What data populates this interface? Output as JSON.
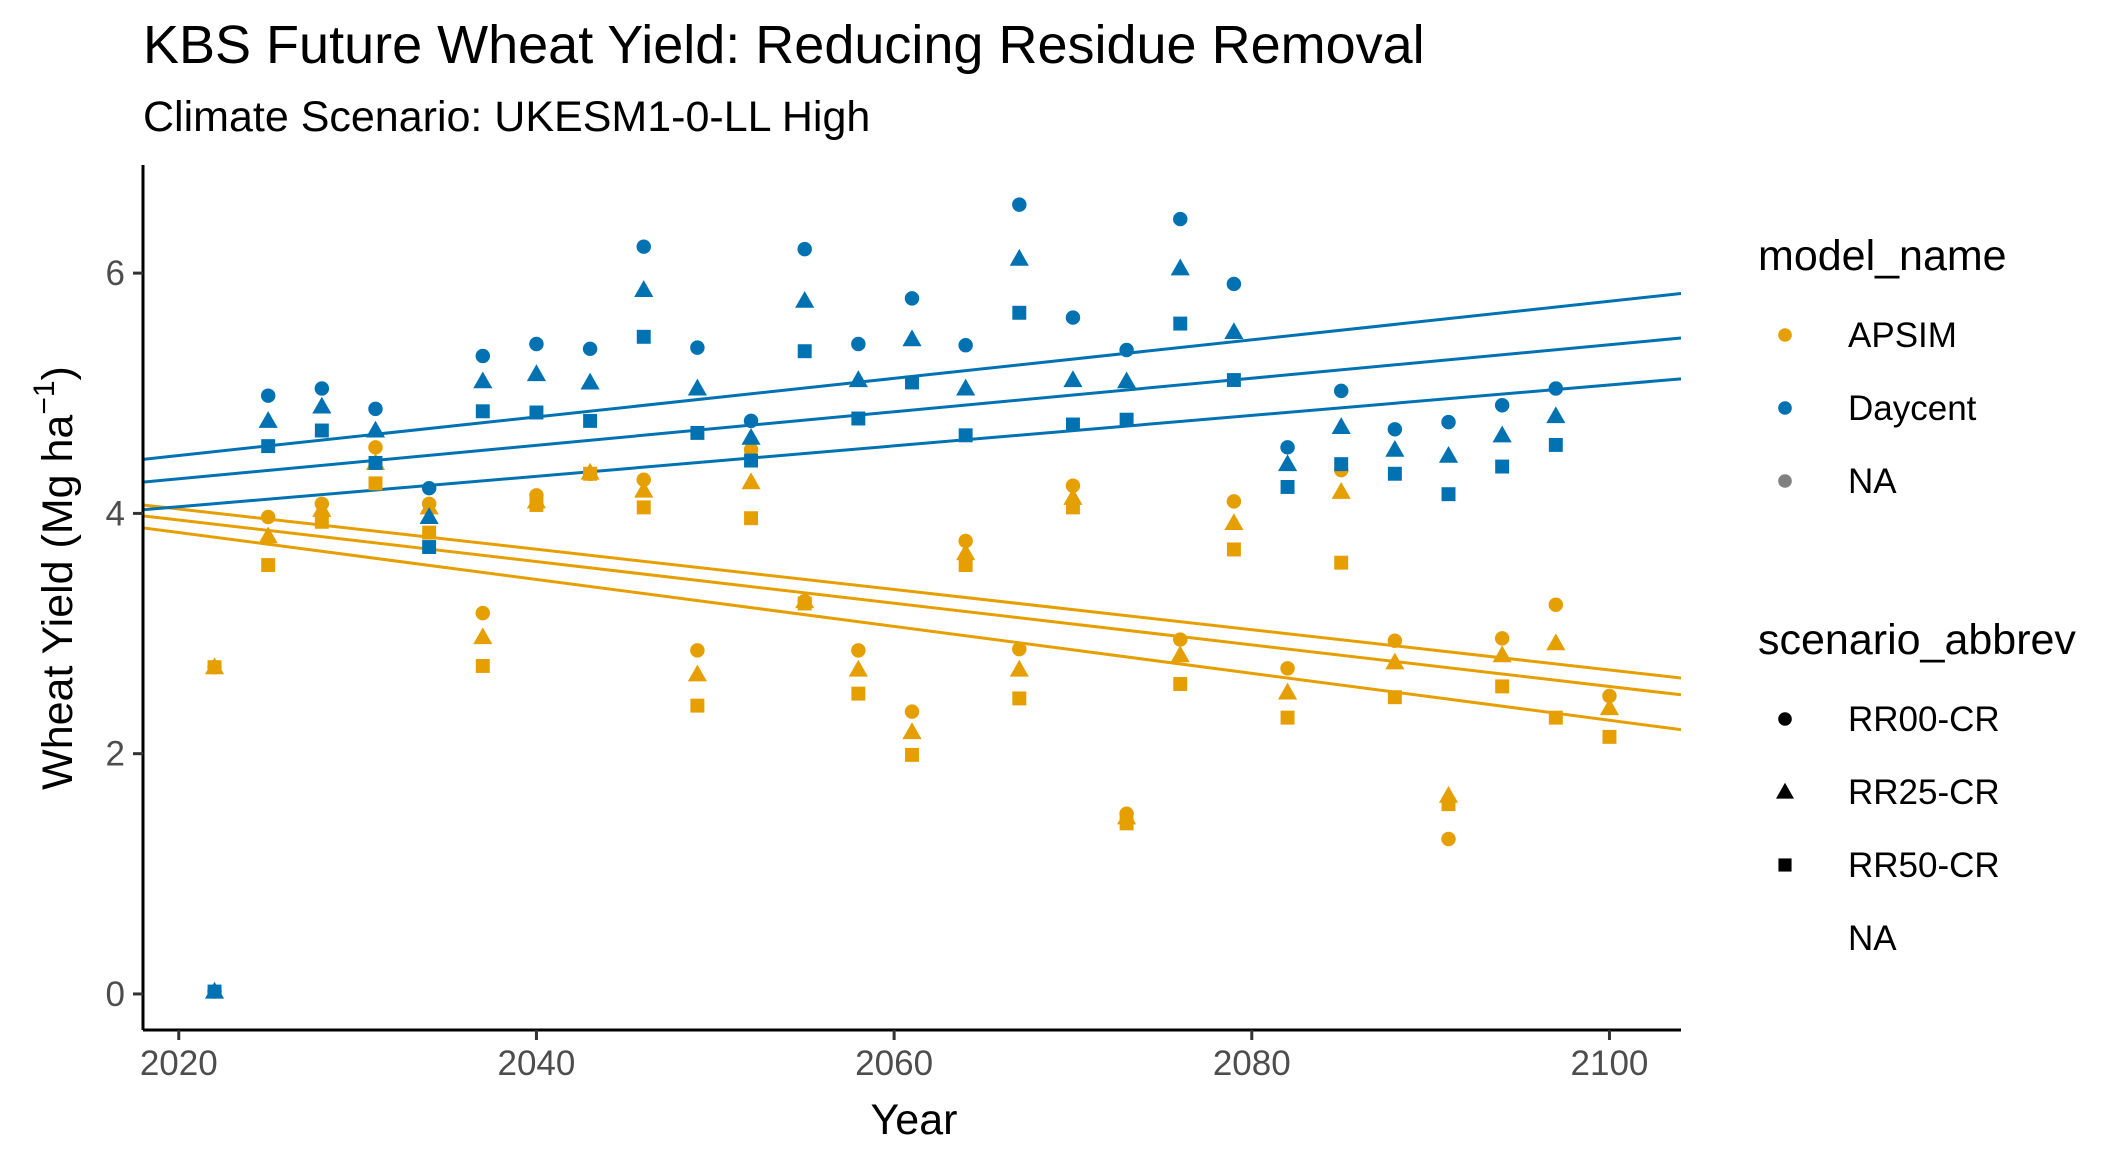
{
  "chart_data": {
    "type": "scatter",
    "title": "KBS Future Wheat Yield: Reducing Residue Removal",
    "subtitle": "Climate Scenario: UKESM1-0-LL High",
    "xlabel": "Year",
    "ylabel": "Wheat Yield (Mg ha",
    "ylabel_superscript": "−1",
    "ylabel_suffix": ")",
    "xlim": [
      2018,
      2104
    ],
    "ylim": [
      -0.3,
      6.9
    ],
    "x_ticks": [
      2020,
      2040,
      2060,
      2080,
      2100
    ],
    "y_ticks": [
      0,
      2,
      4,
      6
    ],
    "grid": false,
    "legend_position": "right",
    "colors": {
      "APSIM": "#E69F00",
      "Daycent": "#0072B2",
      "NA": "#808080"
    },
    "legends": [
      {
        "title": "model_name",
        "entries": [
          {
            "label": "APSIM",
            "color": "#E69F00",
            "shape": "circle"
          },
          {
            "label": "Daycent",
            "color": "#0072B2",
            "shape": "circle"
          },
          {
            "label": "NA",
            "color": "#808080",
            "shape": "circle"
          }
        ]
      },
      {
        "title": "scenario_abbrev",
        "entries": [
          {
            "label": "RR00-CR",
            "color": "#000000",
            "shape": "circle"
          },
          {
            "label": "RR25-CR",
            "color": "#000000",
            "shape": "triangle"
          },
          {
            "label": "RR50-CR",
            "color": "#000000",
            "shape": "square"
          },
          {
            "label": "NA",
            "color": "#000000",
            "shape": "none"
          }
        ]
      }
    ],
    "series": [
      {
        "model": "APSIM",
        "scenario": "RR00-CR",
        "shape": "circle",
        "x": [
          2022,
          2025,
          2028,
          2031,
          2034,
          2037,
          2040,
          2043,
          2046,
          2049,
          2052,
          2055,
          2058,
          2061,
          2064,
          2067,
          2070,
          2073,
          2076,
          2079,
          2082,
          2085,
          2088,
          2091,
          2094,
          2097,
          2100
        ],
        "y": [
          2.72,
          3.97,
          4.08,
          4.55,
          4.08,
          3.17,
          4.15,
          4.33,
          4.28,
          2.86,
          4.53,
          3.27,
          2.86,
          2.35,
          3.77,
          2.87,
          4.23,
          1.5,
          2.95,
          4.1,
          2.71,
          4.36,
          2.94,
          1.29,
          2.96,
          3.24,
          2.48
        ]
      },
      {
        "model": "APSIM",
        "scenario": "RR25-CR",
        "shape": "triangle",
        "x": [
          2022,
          2025,
          2028,
          2031,
          2034,
          2037,
          2040,
          2043,
          2046,
          2049,
          2052,
          2055,
          2058,
          2061,
          2064,
          2067,
          2070,
          2073,
          2076,
          2079,
          2082,
          2085,
          2088,
          2091,
          2094,
          2097,
          2100
        ],
        "y": [
          2.72,
          3.81,
          4.03,
          4.42,
          4.05,
          2.97,
          4.1,
          4.34,
          4.19,
          2.66,
          4.26,
          3.27,
          2.7,
          2.18,
          3.67,
          2.7,
          4.13,
          1.47,
          2.82,
          3.92,
          2.51,
          4.18,
          2.76,
          1.65,
          2.82,
          2.92,
          2.38
        ]
      },
      {
        "model": "APSIM",
        "scenario": "RR50-CR",
        "shape": "square",
        "x": [
          2022,
          2025,
          2028,
          2031,
          2034,
          2037,
          2040,
          2043,
          2046,
          2049,
          2052,
          2055,
          2058,
          2061,
          2064,
          2067,
          2070,
          2073,
          2076,
          2079,
          2082,
          2085,
          2088,
          2091,
          2094,
          2097,
          2100
        ],
        "y": [
          2.72,
          3.57,
          3.93,
          4.25,
          3.84,
          2.73,
          4.07,
          4.33,
          4.05,
          2.4,
          3.96,
          3.25,
          2.5,
          1.99,
          3.57,
          2.46,
          4.05,
          1.42,
          2.58,
          3.7,
          2.3,
          3.59,
          2.47,
          1.58,
          2.56,
          2.3,
          2.14
        ]
      },
      {
        "model": "Daycent",
        "scenario": "RR00-CR",
        "shape": "circle",
        "x": [
          2022,
          2025,
          2028,
          2031,
          2034,
          2037,
          2040,
          2043,
          2046,
          2049,
          2052,
          2055,
          2058,
          2061,
          2064,
          2067,
          2070,
          2073,
          2076,
          2079,
          2082,
          2085,
          2088,
          2091,
          2094,
          2097
        ],
        "y": [
          0.02,
          4.98,
          5.04,
          4.87,
          4.21,
          5.31,
          5.41,
          5.37,
          6.22,
          5.38,
          4.77,
          6.2,
          5.41,
          5.79,
          5.4,
          6.57,
          5.63,
          5.36,
          6.45,
          5.91,
          4.55,
          5.02,
          4.7,
          4.76,
          4.9,
          5.04
        ]
      },
      {
        "model": "Daycent",
        "scenario": "RR25-CR",
        "shape": "triangle",
        "x": [
          2022,
          2025,
          2028,
          2031,
          2034,
          2037,
          2040,
          2043,
          2046,
          2049,
          2052,
          2055,
          2058,
          2061,
          2064,
          2067,
          2070,
          2073,
          2076,
          2079,
          2082,
          2085,
          2088,
          2091,
          2094,
          2097
        ],
        "y": [
          0.02,
          4.77,
          4.89,
          4.69,
          3.97,
          5.1,
          5.16,
          5.09,
          5.86,
          5.04,
          4.63,
          5.77,
          5.11,
          5.45,
          5.04,
          6.12,
          5.11,
          5.1,
          6.04,
          5.51,
          4.41,
          4.72,
          4.53,
          4.48,
          4.65,
          4.81
        ]
      },
      {
        "model": "Daycent",
        "scenario": "RR50-CR",
        "shape": "square",
        "x": [
          2022,
          2025,
          2028,
          2031,
          2034,
          2037,
          2040,
          2043,
          2046,
          2049,
          2052,
          2055,
          2058,
          2061,
          2064,
          2067,
          2070,
          2073,
          2076,
          2079,
          2082,
          2085,
          2088,
          2091,
          2094,
          2097
        ],
        "y": [
          0.02,
          4.56,
          4.69,
          4.42,
          3.72,
          4.85,
          4.84,
          4.77,
          5.47,
          4.67,
          4.44,
          5.35,
          4.79,
          5.09,
          4.65,
          5.67,
          4.74,
          4.78,
          5.58,
          5.11,
          4.22,
          4.41,
          4.33,
          4.16,
          4.39,
          4.57
        ]
      }
    ],
    "trendlines": [
      {
        "model": "APSIM",
        "scenario": "RR00-CR",
        "x": [
          2018,
          2104
        ],
        "y": [
          4.07,
          2.63
        ]
      },
      {
        "model": "APSIM",
        "scenario": "RR25-CR",
        "x": [
          2018,
          2104
        ],
        "y": [
          3.98,
          2.49
        ]
      },
      {
        "model": "APSIM",
        "scenario": "RR50-CR",
        "x": [
          2018,
          2104
        ],
        "y": [
          3.88,
          2.2
        ]
      },
      {
        "model": "Daycent",
        "scenario": "RR00-CR",
        "x": [
          2018,
          2104
        ],
        "y": [
          4.45,
          5.83
        ]
      },
      {
        "model": "Daycent",
        "scenario": "RR25-CR",
        "x": [
          2018,
          2104
        ],
        "y": [
          4.26,
          5.46
        ]
      },
      {
        "model": "Daycent",
        "scenario": "RR50-CR",
        "x": [
          2018,
          2104
        ],
        "y": [
          4.03,
          5.12
        ]
      }
    ]
  }
}
